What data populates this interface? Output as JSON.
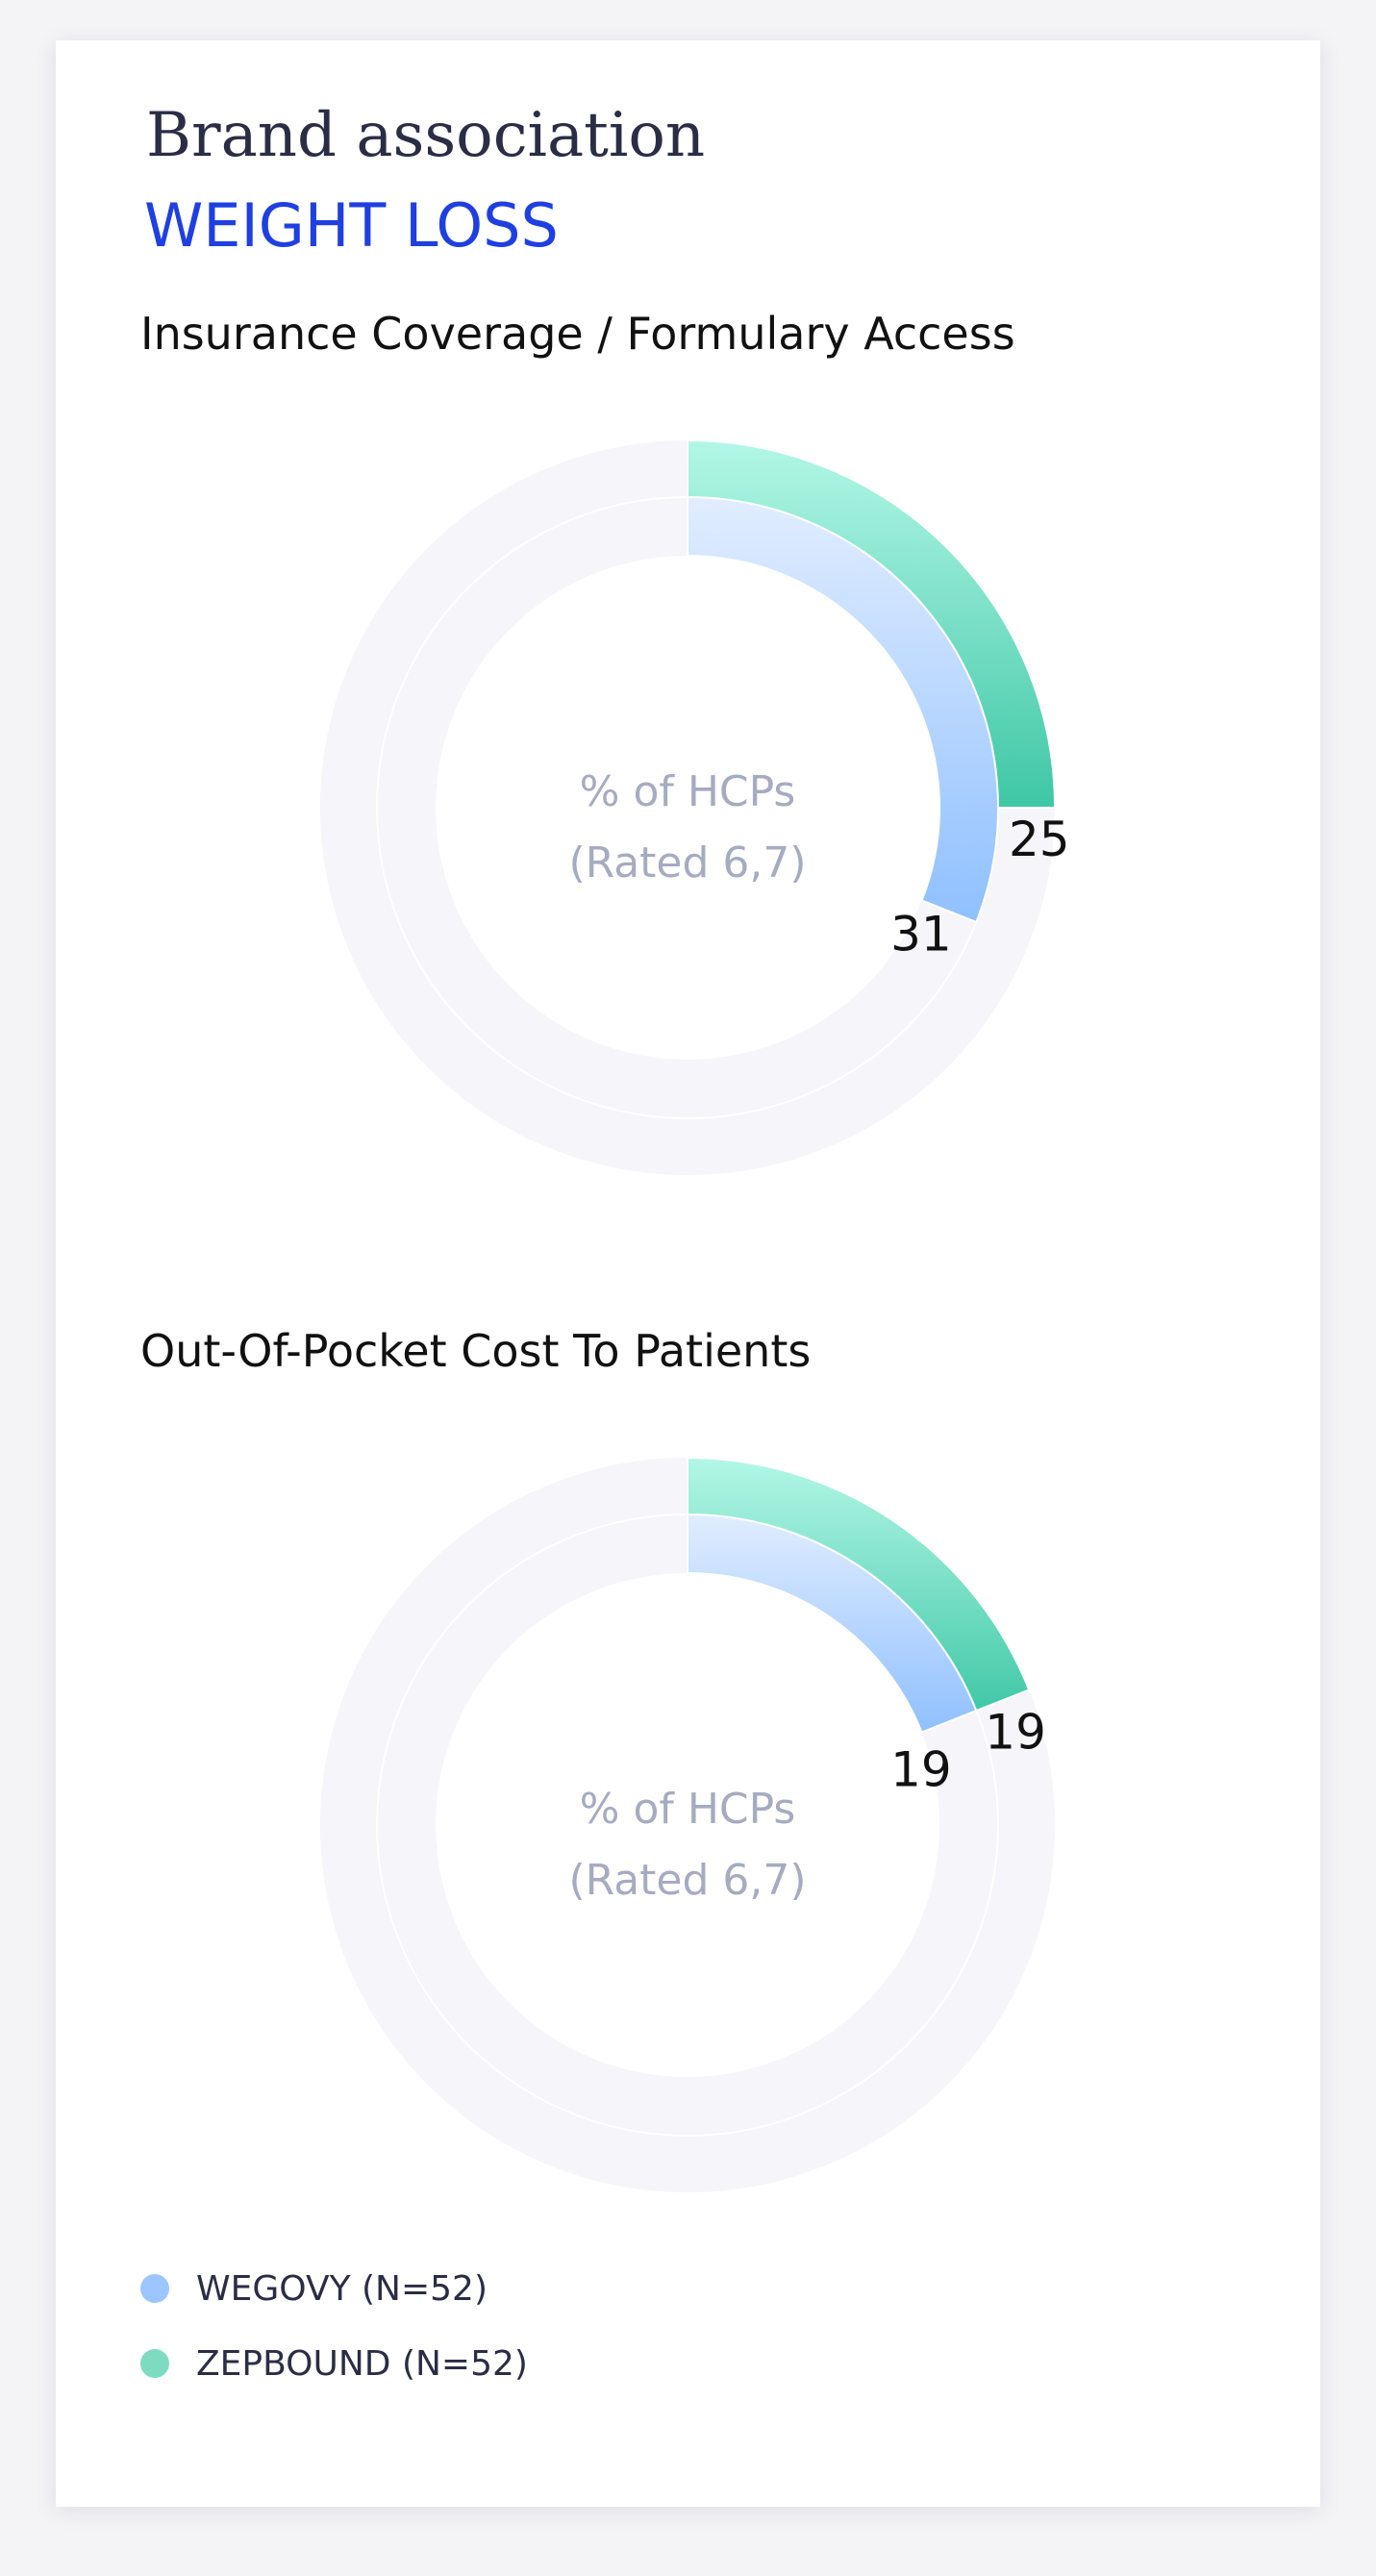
{
  "header": {
    "title": "Brand association",
    "subtitle": "WEIGHT LOSS"
  },
  "colors": {
    "wegovy": "#8fc0ff",
    "zepbound": "#3ec7a5",
    "track": "#f5f5fa",
    "subtitle": "#1f3fe0"
  },
  "chart_data": [
    {
      "type": "radial-bar",
      "title": "Insurance Coverage / Formulary Access",
      "center_text": [
        "% of HCPs",
        "(Rated 6,7)"
      ],
      "max": 100,
      "series": [
        {
          "name": "ZEPBOUND (N=52)",
          "value": 25,
          "ring": "outer"
        },
        {
          "name": "WEGOVY (N=52)",
          "value": 31,
          "ring": "inner"
        }
      ]
    },
    {
      "type": "radial-bar",
      "title": "Out-Of-Pocket Cost To Patients",
      "center_text": [
        "% of HCPs",
        "(Rated 6,7)"
      ],
      "max": 100,
      "series": [
        {
          "name": "ZEPBOUND (N=52)",
          "value": 19,
          "ring": "outer"
        },
        {
          "name": "WEGOVY (N=52)",
          "value": 19,
          "ring": "inner"
        }
      ]
    }
  ],
  "legend": [
    {
      "label": "WEGOVY (N=52)",
      "color": "#9cc6ff"
    },
    {
      "label": "ZEPBOUND (N=52)",
      "color": "#7ddcc0"
    }
  ]
}
